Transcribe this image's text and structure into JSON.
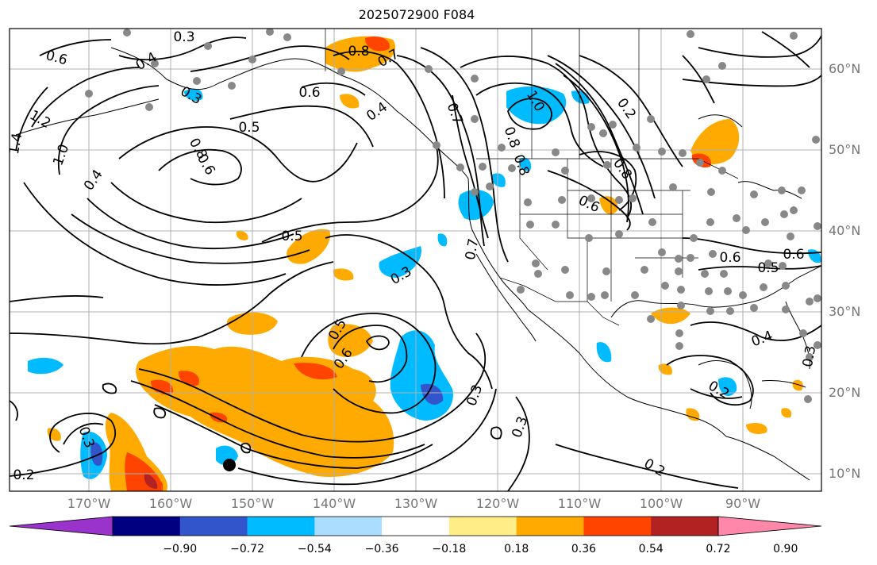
{
  "title": "2025072900 F084",
  "lat_labels": [
    "60°N",
    "50°N",
    "40°N",
    "30°N",
    "20°N",
    "10°N"
  ],
  "lon_labels": [
    "170°W",
    "160°W",
    "150°W",
    "140°W",
    "130°W",
    "120°W",
    "110°W",
    "100°W",
    "90°W"
  ],
  "colorbar": {
    "colors": [
      "#9933cc",
      "#000080",
      "#3355cc",
      "#00bbff",
      "#aaddff",
      "#ffffff",
      "#ffee88",
      "#ffaa00",
      "#ff4400",
      "#b22222",
      "#ff88aa"
    ],
    "tick_labels": [
      "−0.90",
      "−0.72",
      "−0.54",
      "−0.36",
      "−0.18",
      "0.18",
      "0.36",
      "0.54",
      "0.72",
      "0.90"
    ]
  },
  "contour_labels": [
    "0.3",
    "0.4",
    "0.8",
    "0.7",
    "0.6",
    "0.3",
    "0.4",
    "0.6",
    "0.5",
    "1.2",
    "1.4",
    "1.0",
    "0.4",
    "0.8",
    "0.6",
    "0.8",
    "1.0",
    "0.7",
    "0.8",
    "0.2",
    "0.8",
    "0.6",
    "0.7",
    "0.5",
    "0.3",
    "0.6",
    "0.5",
    "0.6",
    "0.5",
    "0.6",
    "0.4",
    "0.3",
    "0.3",
    "0.3",
    "0.2",
    "0.2",
    "0.3",
    "0.2"
  ],
  "colors": {
    "contour": "#000000",
    "grid": "#b0b0b0",
    "stations": "#888888"
  }
}
